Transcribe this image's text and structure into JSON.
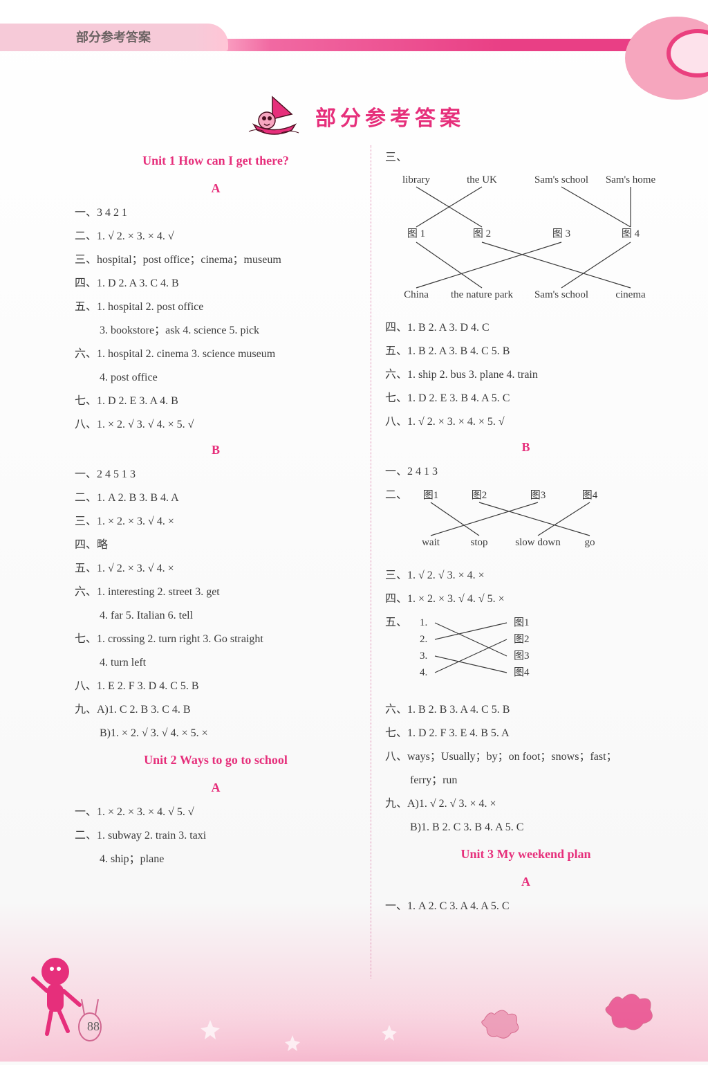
{
  "header_tab": "部分参考答案",
  "main_title": "部分参考答案",
  "page_number": "88",
  "colors": {
    "accent": "#e62f7b",
    "tab_bg": "#f6cad8",
    "stripe": "#e93f85",
    "text": "#3a3a3a",
    "divider": "#e08bb0"
  },
  "left": {
    "unit1_title": "Unit 1   How can I get there?",
    "secA": "A",
    "a1": "一、3  4  2  1",
    "a2": "二、1. √  2. ×  3. ×  4. √",
    "a3": "三、hospital；post office；cinema；museum",
    "a4": "四、1. D  2. A  3. C  4. B",
    "a5": "五、1. hospital  2. post office",
    "a5b": "3. bookstore；ask  4. science  5. pick",
    "a6": "六、1. hospital  2. cinema  3. science museum",
    "a6b": "4. post office",
    "a7": "七、1. D  2. E  3. A  4. B",
    "a8": "八、1. ×  2. √  3. √  4. ×  5. √",
    "secB": "B",
    "b1": "一、2  4  5  1  3",
    "b2": "二、1. A  2. B  3. B  4. A",
    "b3": "三、1. ×  2. ×  3. √  4. ×",
    "b4": "四、略",
    "b5": "五、1. √  2. ×  3. √  4. ×",
    "b6": "六、1. interesting  2. street  3. get",
    "b6b": "4. far  5. Italian  6. tell",
    "b7": "七、1. crossing  2. turn right  3. Go straight",
    "b7b": "4. turn left",
    "b8": "八、1. E  2. F  3. D  4. C  5. B",
    "b9": "九、A)1. C  2. B  3. C  4. B",
    "b9b": "B)1. ×  2. √  3. √  4. ×  5. ×",
    "unit2_title": "Unit 2   Ways to go to school",
    "secA2": "A",
    "c1": "一、1. ×  2. ×  3. ×  4. √  5. √",
    "c2": "二、1. subway  2. train  3. taxi",
    "c2b": "4. ship；plane"
  },
  "right": {
    "r_san": "三、",
    "diagram1": {
      "top": [
        "library",
        "the UK",
        "Sam's school",
        "Sam's home"
      ],
      "mid": [
        "图 1",
        "图 2",
        "图 3",
        "图 4"
      ],
      "bottom": [
        "China",
        "the nature park",
        "Sam's school",
        "cinema"
      ],
      "top_to_mid": [
        [
          0,
          1
        ],
        [
          1,
          0
        ],
        [
          2,
          3
        ],
        [
          3,
          3
        ]
      ],
      "mid_to_bottom": [
        [
          0,
          1
        ],
        [
          1,
          3
        ],
        [
          2,
          0
        ],
        [
          3,
          2
        ]
      ]
    },
    "r4": "四、1. B  2. A  3. D  4. C",
    "r5": "五、1. B  2. A  3. B  4. C  5. B",
    "r6": "六、1. ship  2. bus  3. plane  4. train",
    "r7": "七、1. D  2. E  3. B  4. A  5. C",
    "r8": "八、1. √  2. ×  3. ×  4. ×  5. √",
    "secB": "B",
    "rb1": "一、2  4  1  3",
    "rb2": "二、",
    "diagram2": {
      "top": [
        "图1",
        "图2",
        "图3",
        "图4"
      ],
      "bottom": [
        "wait",
        "stop",
        "slow down",
        "go"
      ],
      "edges": [
        [
          0,
          1
        ],
        [
          1,
          3
        ],
        [
          2,
          0
        ],
        [
          3,
          2
        ]
      ]
    },
    "rb3": "三、1. √  2. √  3. ×  4. ×",
    "rb4": "四、1. ×  2. ×  3. √  4. √  5. ×",
    "rb5": "五、",
    "diagram3": {
      "left": [
        "1.",
        "2.",
        "3.",
        "4."
      ],
      "right": [
        "图1",
        "图2",
        "图3",
        "图4"
      ],
      "edges": [
        [
          0,
          2
        ],
        [
          1,
          0
        ],
        [
          2,
          3
        ],
        [
          3,
          1
        ]
      ]
    },
    "rb6": "六、1. B  2. B  3. A  4. C  5. B",
    "rb7": "七、1. D  2. F  3. E  4. B  5. A",
    "rb8": "八、ways；Usually；by；on foot；snows；fast；",
    "rb8b": "ferry；run",
    "rb9": "九、A)1. √  2. √  3. ×  4. ×",
    "rb9b": "B)1. B  2. C  3. B  4. A  5. C",
    "unit3_title": "Unit 3   My weekend plan",
    "secA3": "A",
    "u3a1": "一、1. A  2. C  3. A  4. A  5. C"
  }
}
